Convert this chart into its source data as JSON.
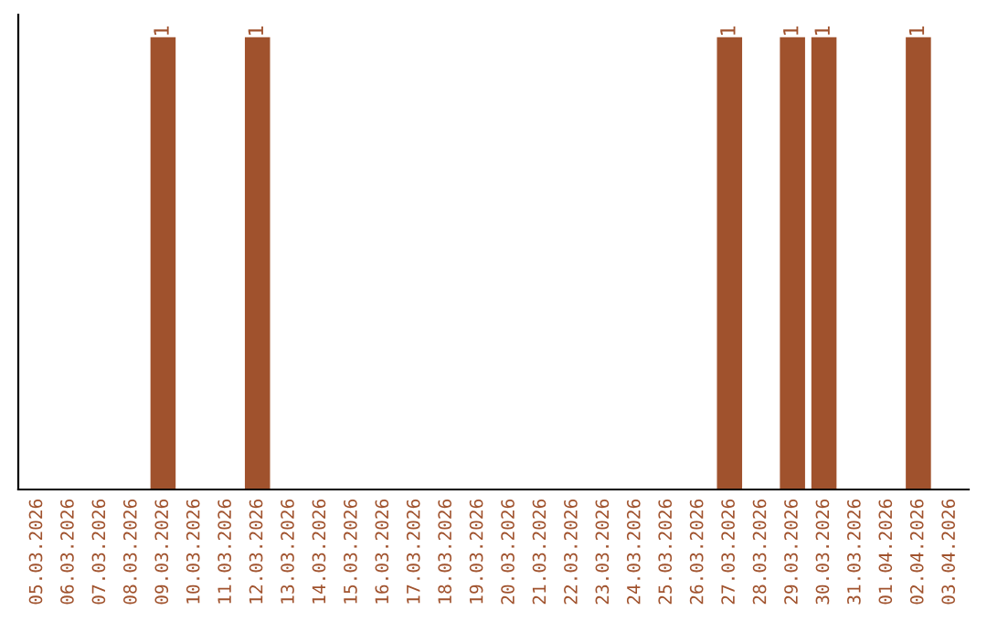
{
  "chart_data": {
    "type": "bar",
    "categories": [
      "05.03.2026",
      "06.03.2026",
      "07.03.2026",
      "08.03.2026",
      "09.03.2026",
      "10.03.2026",
      "11.03.2026",
      "12.03.2026",
      "13.03.2026",
      "14.03.2026",
      "15.03.2026",
      "16.03.2026",
      "17.03.2026",
      "18.03.2026",
      "19.03.2026",
      "20.03.2026",
      "21.03.2026",
      "22.03.2026",
      "23.03.2026",
      "24.03.2026",
      "25.03.2026",
      "26.03.2026",
      "27.03.2026",
      "28.03.2026",
      "29.03.2026",
      "30.03.2026",
      "31.03.2026",
      "01.04.2026",
      "02.04.2026",
      "03.04.2026"
    ],
    "values": [
      0,
      0,
      0,
      0,
      1,
      0,
      0,
      1,
      0,
      0,
      0,
      0,
      0,
      0,
      0,
      0,
      0,
      0,
      0,
      0,
      0,
      0,
      1,
      0,
      1,
      1,
      0,
      0,
      1,
      0
    ],
    "value_labels": [
      null,
      null,
      null,
      null,
      "1",
      null,
      null,
      "1",
      null,
      null,
      null,
      null,
      null,
      null,
      null,
      null,
      null,
      null,
      null,
      null,
      null,
      null,
      "1",
      null,
      "1",
      "1",
      null,
      null,
      "1",
      null
    ],
    "color": "#a0522d",
    "ylim": [
      0,
      1.05
    ],
    "tick_labels": "x",
    "grid": false,
    "legend": false
  }
}
